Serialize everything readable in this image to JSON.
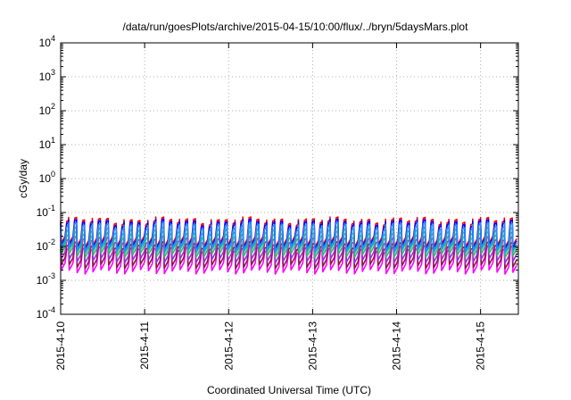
{
  "chart_data": {
    "type": "line",
    "title": "/data/run/goesPlots/archive/2015-04-15/10:00/flux/../bryn/5daysMars.plot",
    "xlabel": "Coordinated Universal Time (UTC)",
    "ylabel": "cGy/day",
    "y_scale": "log",
    "ylim": [
      0.0001,
      10000
    ],
    "xlim": [
      0,
      5.45
    ],
    "grid": true,
    "x_ticks": [
      {
        "value": 0,
        "label": "2015-4-10"
      },
      {
        "value": 1,
        "label": "2015-4-11"
      },
      {
        "value": 2,
        "label": "2015-4-12"
      },
      {
        "value": 3,
        "label": "2015-4-13"
      },
      {
        "value": 4,
        "label": "2015-4-14"
      },
      {
        "value": 5,
        "label": "2015-4-15"
      }
    ],
    "y_ticks": [
      {
        "value": 0.0001,
        "base": "10",
        "exp": "-4"
      },
      {
        "value": 0.001,
        "base": "10",
        "exp": "-3"
      },
      {
        "value": 0.01,
        "base": "10",
        "exp": "-2"
      },
      {
        "value": 0.1,
        "base": "10",
        "exp": "-1"
      },
      {
        "value": 1,
        "base": "10",
        "exp": "0"
      },
      {
        "value": 10,
        "base": "10",
        "exp": "1"
      },
      {
        "value": 100,
        "base": "10",
        "exp": "2"
      },
      {
        "value": 1000,
        "base": "10",
        "exp": "3"
      },
      {
        "value": 10000,
        "base": "10",
        "exp": "4"
      }
    ],
    "pattern": {
      "cycles_per_day": 10.6,
      "dip_fraction": 0.55
    },
    "series": [
      {
        "color": "#ff00ff",
        "peak": 0.0085,
        "trough": 0.0018
      },
      {
        "color": "#8b1a4a",
        "peak": 0.011,
        "trough": 0.0026
      },
      {
        "color": "#9a32cd",
        "peak": 0.016,
        "trough": 0.0038
      },
      {
        "color": "#3cb371",
        "peak": 0.022,
        "trough": 0.0055
      },
      {
        "color": "#20b2aa",
        "peak": 0.03,
        "trough": 0.0072
      },
      {
        "color": "#ff0000",
        "peak": 0.058,
        "trough": 0.011
      },
      {
        "color": "#0000ff",
        "peak": 0.05,
        "trough": 0.0095
      },
      {
        "color": "#1e90ff",
        "peak": 0.04,
        "trough": 0.0085
      }
    ]
  }
}
